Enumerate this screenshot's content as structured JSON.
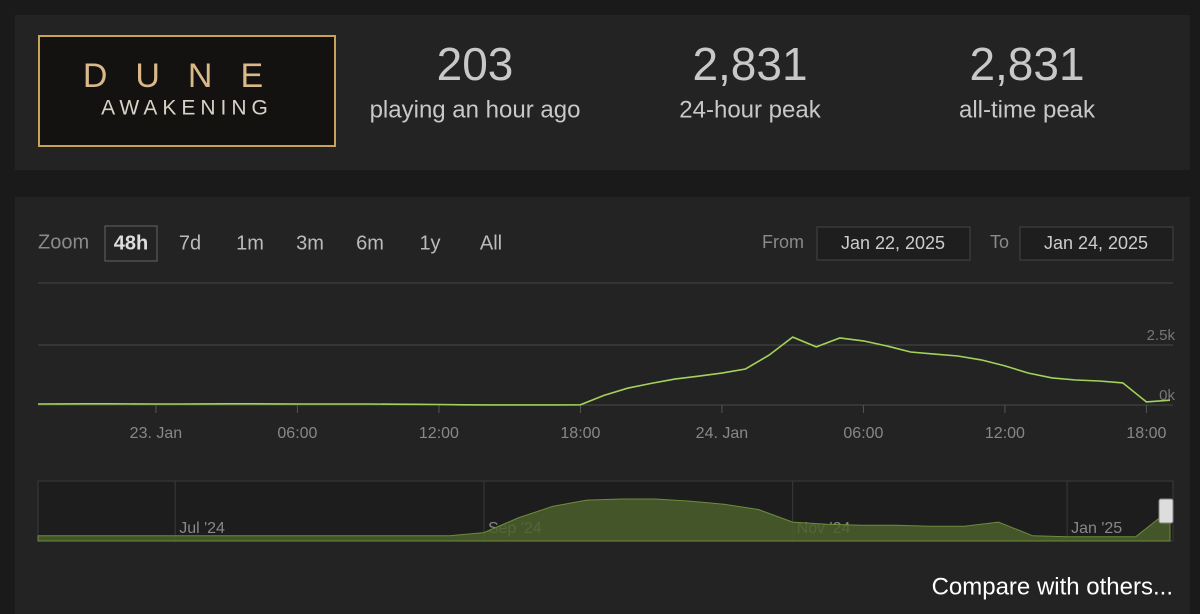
{
  "header": {
    "logo": {
      "line1": "DUNE",
      "line2": "AWAKENING"
    },
    "stats": [
      {
        "value": "203",
        "label": "playing an hour ago"
      },
      {
        "value": "2,831",
        "label": "24-hour peak"
      },
      {
        "value": "2,831",
        "label": "all-time peak"
      }
    ]
  },
  "controls": {
    "zoom_label": "Zoom",
    "zoom_options": [
      "48h",
      "7d",
      "1m",
      "3m",
      "6m",
      "1y",
      "All"
    ],
    "selected_zoom": 0,
    "from_label": "From",
    "from": "Jan 22, 2025",
    "to_label": "To",
    "to": "Jan 24, 2025"
  },
  "chart_data": [
    {
      "type": "line",
      "color": "#a3d25a",
      "categories": [
        null,
        null,
        null,
        null,
        null,
        "23. Jan",
        null,
        null,
        null,
        null,
        null,
        "06:00",
        null,
        null,
        null,
        null,
        null,
        "12:00",
        null,
        null,
        null,
        null,
        null,
        "18:00",
        null,
        null,
        null,
        null,
        null,
        "24. Jan",
        null,
        null,
        null,
        null,
        null,
        "06:00",
        null,
        null,
        null,
        null,
        null,
        "12:00",
        null,
        null,
        null,
        null,
        null,
        "18:00",
        null
      ],
      "values": [
        40,
        45,
        50,
        50,
        45,
        40,
        40,
        45,
        50,
        50,
        45,
        40,
        40,
        40,
        40,
        35,
        30,
        20,
        10,
        5,
        5,
        5,
        5,
        10,
        400,
        700,
        900,
        1080,
        1200,
        1330,
        1500,
        2080,
        2830,
        2420,
        2790,
        2670,
        2460,
        2210,
        2120,
        2040,
        1880,
        1630,
        1330,
        1130,
        1040,
        1000,
        920,
        130,
        200
      ],
      "ylim": [
        0,
        5000
      ],
      "yticks": [
        {
          "value": 0,
          "label": "0k"
        },
        {
          "value": 2500,
          "label": "2.5k"
        }
      ],
      "grid": true
    },
    {
      "type": "area",
      "color": "#4b5f2b",
      "categories": [
        null,
        null,
        null,
        null,
        "Jul '24",
        null,
        null,
        null,
        null,
        null,
        null,
        null,
        null,
        "Sep '24",
        null,
        null,
        null,
        null,
        null,
        null,
        null,
        null,
        "Nov '24",
        null,
        null,
        null,
        null,
        null,
        null,
        null,
        "Jan '25",
        null,
        null,
        null
      ],
      "values": [
        5,
        5,
        5,
        5,
        5,
        5,
        5,
        5,
        5,
        5,
        5,
        5,
        5,
        8,
        22,
        33,
        39,
        40,
        40,
        38,
        35,
        30,
        18,
        16,
        15,
        15,
        14,
        14,
        18,
        5,
        4,
        4,
        4,
        30
      ]
    }
  ],
  "compare_link": "Compare with others..."
}
